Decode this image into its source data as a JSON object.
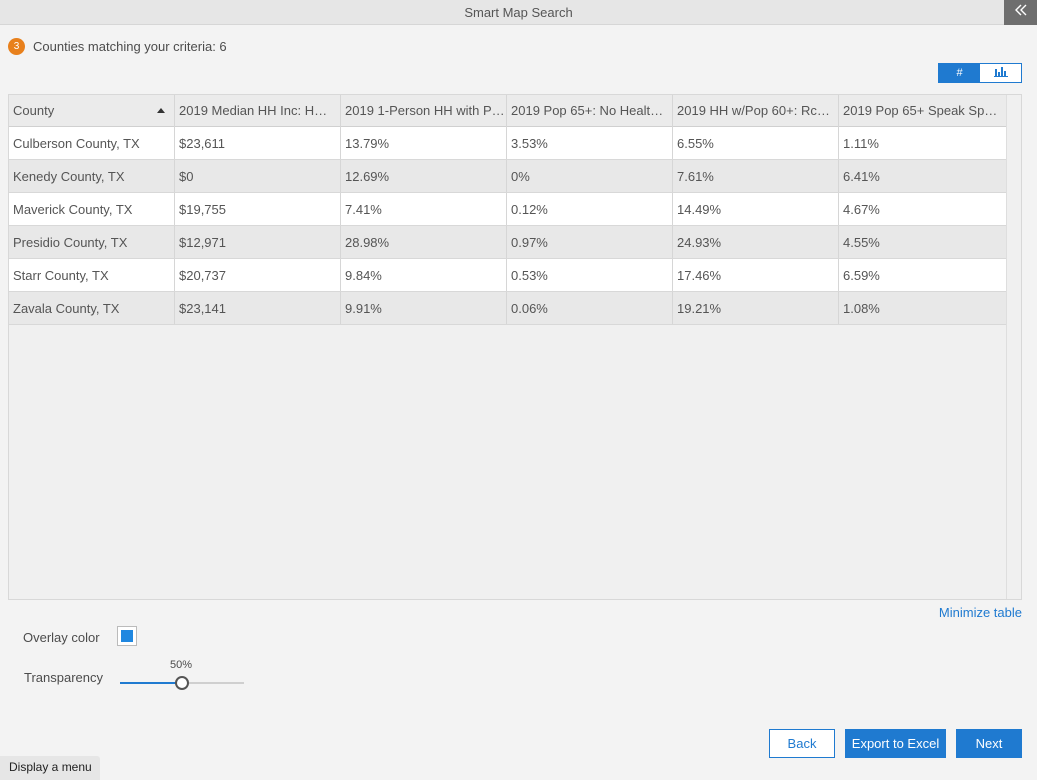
{
  "window": {
    "title": "Smart Map Search"
  },
  "step": {
    "number": "3",
    "text": "Counties matching your criteria: 6"
  },
  "view_toggle": {
    "table_label": "#",
    "chart_icon": "bar-chart-icon"
  },
  "table": {
    "columns": [
      "County",
      "2019 Median HH Inc: H…",
      "2019 1-Person HH with P…",
      "2019 Pop 65+: No Healt…",
      "2019 HH w/Pop 60+: Rc…",
      "2019 Pop 65+ Speak Sp…"
    ],
    "sorted_column": "County",
    "sort_direction": "ascending",
    "rows": [
      [
        "Culberson County, TX",
        "$23,611",
        "13.79%",
        "3.53%",
        "6.55%",
        "1.11%"
      ],
      [
        "Kenedy County, TX",
        "$0",
        "12.69%",
        "0%",
        "7.61%",
        "6.41%"
      ],
      [
        "Maverick County, TX",
        "$19,755",
        "7.41%",
        "0.12%",
        "14.49%",
        "4.67%"
      ],
      [
        "Presidio County, TX",
        "$12,971",
        "28.98%",
        "0.97%",
        "24.93%",
        "4.55%"
      ],
      [
        "Starr County, TX",
        "$20,737",
        "9.84%",
        "0.53%",
        "17.46%",
        "6.59%"
      ],
      [
        "Zavala County, TX",
        "$23,141",
        "9.91%",
        "0.06%",
        "19.21%",
        "1.08%"
      ]
    ]
  },
  "minimize_label": "Minimize table",
  "overlay": {
    "label": "Overlay color",
    "color": "#1f87e0"
  },
  "transparency": {
    "label": "Transparency",
    "value_text": "50%",
    "value": 0.5
  },
  "buttons": {
    "back": "Back",
    "export": "Export to Excel",
    "next": "Next"
  },
  "display_menu": "Display a menu",
  "colors": {
    "accent": "#1f7ad0",
    "step_badge": "#e8801c"
  }
}
